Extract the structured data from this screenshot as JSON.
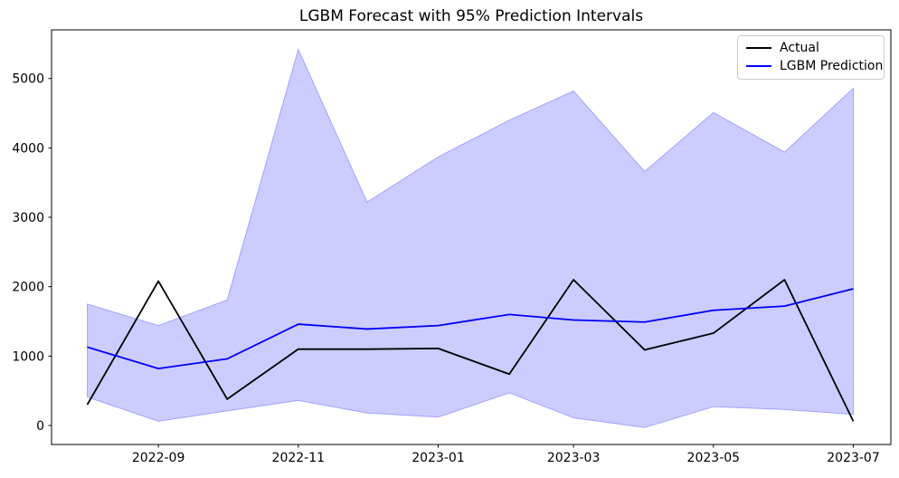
{
  "chart_data": {
    "type": "line",
    "title": "LGBM Forecast with 95% Prediction Intervals",
    "x_months": [
      "2022-08",
      "2022-09",
      "2022-10",
      "2022-11",
      "2022-12",
      "2023-01",
      "2023-02",
      "2023-03",
      "2023-04",
      "2023-05",
      "2023-06",
      "2023-07"
    ],
    "x_day_offsets": [
      0,
      31,
      61,
      92,
      122,
      153,
      184,
      212,
      243,
      273,
      304,
      334
    ],
    "series": [
      {
        "name": "Actual",
        "color": "#000000",
        "values": [
          300,
          2080,
          380,
          1100,
          1100,
          1110,
          740,
          2100,
          1090,
          1330,
          2100,
          60
        ]
      },
      {
        "name": "LGBM Prediction",
        "color": "#0000ff",
        "values": [
          1130,
          820,
          960,
          1460,
          1390,
          1440,
          1600,
          1520,
          1490,
          1660,
          1720,
          1970
        ]
      }
    ],
    "band": {
      "name": "95% prediction interval",
      "fill_color": "rgba(0,0,255,0.2)",
      "edge_color": "rgba(0,0,255,0.28)",
      "upper": [
        1750,
        1440,
        1810,
        5420,
        3220,
        3870,
        4400,
        4820,
        3660,
        4510,
        3940,
        4860
      ],
      "lower": [
        410,
        60,
        210,
        360,
        180,
        120,
        470,
        110,
        -30,
        270,
        230,
        160
      ]
    },
    "xticks": {
      "labels": [
        "2022-09",
        "2022-11",
        "2023-01",
        "2023-03",
        "2023-05",
        "2023-07"
      ],
      "day_offsets": [
        31,
        92,
        153,
        212,
        273,
        334
      ]
    },
    "yticks": [
      0,
      1000,
      2000,
      3000,
      4000,
      5000
    ],
    "ylim": [
      -280,
      5690
    ],
    "legend_position": "upper right",
    "grid": false,
    "xlabel": "",
    "ylabel": ""
  }
}
